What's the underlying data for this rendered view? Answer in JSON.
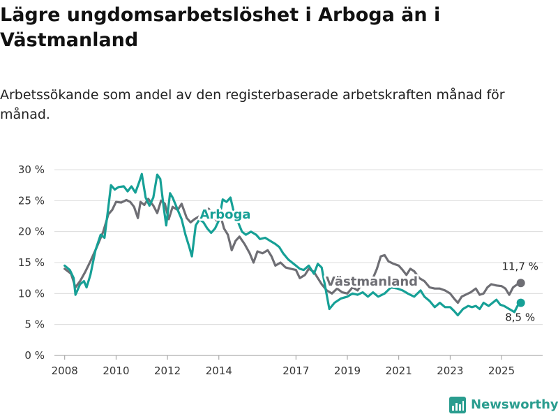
{
  "title": "Lägre ungdomsarbetslöshet i Arboga än i Västmanland",
  "subtitle": "Arbetssökande som andel av den registerbaserade arbetskraften månad för månad.",
  "brand": "Newsworthy",
  "colors": {
    "arboga": "#16a096",
    "vastmanland": "#6e6e74",
    "grid": "#dcdcdc",
    "brand": "#2a9d8f"
  },
  "chart_data": {
    "type": "line",
    "title": "Lägre ungdomsarbetslöshet i Arboga än i Västmanland",
    "xlabel": "",
    "ylabel": "",
    "ylim": [
      0,
      30
    ],
    "xlim": [
      2007.6,
      2026.6
    ],
    "y_ticks": [
      0,
      5,
      10,
      15,
      20,
      25,
      30
    ],
    "y_tick_labels": [
      "0 %",
      "5 %",
      "10 %",
      "15 %",
      "20 %",
      "25 %",
      "30 %"
    ],
    "x_ticks": [
      2008,
      2010,
      2012,
      2014,
      2017,
      2019,
      2021,
      2023,
      2025
    ],
    "x_tick_labels": [
      "2008",
      "2010",
      "2012",
      "2014",
      "2017",
      "2019",
      "2021",
      "2023",
      "2025"
    ],
    "series": [
      {
        "name": "Västmanland",
        "end_label": "11,7 %",
        "points": [
          [
            2008.0,
            14.0
          ],
          [
            2008.25,
            13.2
          ],
          [
            2008.42,
            11.0
          ],
          [
            2008.6,
            12.0
          ],
          [
            2008.8,
            13.5
          ],
          [
            2009.0,
            15.2
          ],
          [
            2009.25,
            17.5
          ],
          [
            2009.5,
            20.0
          ],
          [
            2009.7,
            22.8
          ],
          [
            2009.85,
            23.5
          ],
          [
            2010.0,
            24.8
          ],
          [
            2010.2,
            24.7
          ],
          [
            2010.4,
            25.1
          ],
          [
            2010.55,
            24.8
          ],
          [
            2010.7,
            24.0
          ],
          [
            2010.85,
            22.2
          ],
          [
            2010.95,
            24.8
          ],
          [
            2011.1,
            24.3
          ],
          [
            2011.25,
            25.3
          ],
          [
            2011.45,
            24.2
          ],
          [
            2011.6,
            23.0
          ],
          [
            2011.75,
            25.0
          ],
          [
            2011.9,
            24.5
          ],
          [
            2012.05,
            22.0
          ],
          [
            2012.2,
            24.0
          ],
          [
            2012.4,
            23.5
          ],
          [
            2012.55,
            24.5
          ],
          [
            2012.75,
            22.2
          ],
          [
            2012.9,
            21.5
          ],
          [
            2013.05,
            22.0
          ],
          [
            2013.25,
            22.5
          ],
          [
            2013.45,
            23.3
          ],
          [
            2013.6,
            23.7
          ],
          [
            2013.75,
            23.0
          ],
          [
            2013.9,
            21.8
          ],
          [
            2014.05,
            22.8
          ],
          [
            2014.2,
            20.5
          ],
          [
            2014.35,
            19.5
          ],
          [
            2014.5,
            17.0
          ],
          [
            2014.65,
            18.5
          ],
          [
            2014.8,
            19.2
          ],
          [
            2015.0,
            18.0
          ],
          [
            2015.2,
            16.5
          ],
          [
            2015.35,
            15.0
          ],
          [
            2015.5,
            16.8
          ],
          [
            2015.7,
            16.5
          ],
          [
            2015.9,
            17.0
          ],
          [
            2016.05,
            16.0
          ],
          [
            2016.2,
            14.5
          ],
          [
            2016.4,
            15.0
          ],
          [
            2016.6,
            14.2
          ],
          [
            2016.8,
            14.0
          ],
          [
            2017.0,
            13.8
          ],
          [
            2017.15,
            12.5
          ],
          [
            2017.35,
            13.0
          ],
          [
            2017.5,
            14.0
          ],
          [
            2017.7,
            13.5
          ],
          [
            2017.85,
            12.5
          ],
          [
            2018.0,
            11.5
          ],
          [
            2018.2,
            10.5
          ],
          [
            2018.4,
            10.0
          ],
          [
            2018.6,
            10.8
          ],
          [
            2018.8,
            10.2
          ],
          [
            2019.0,
            10.0
          ],
          [
            2019.2,
            11.0
          ],
          [
            2019.4,
            10.5
          ],
          [
            2019.6,
            11.8
          ],
          [
            2019.8,
            12.2
          ],
          [
            2020.0,
            12.5
          ],
          [
            2020.15,
            14.0
          ],
          [
            2020.3,
            16.0
          ],
          [
            2020.45,
            16.2
          ],
          [
            2020.6,
            15.2
          ],
          [
            2020.8,
            14.8
          ],
          [
            2021.0,
            14.5
          ],
          [
            2021.15,
            13.8
          ],
          [
            2021.3,
            13.0
          ],
          [
            2021.45,
            14.0
          ],
          [
            2021.6,
            13.6
          ],
          [
            2021.8,
            12.5
          ],
          [
            2022.0,
            12.0
          ],
          [
            2022.2,
            11.0
          ],
          [
            2022.4,
            10.8
          ],
          [
            2022.6,
            10.8
          ],
          [
            2022.8,
            10.5
          ],
          [
            2023.0,
            10.0
          ],
          [
            2023.15,
            9.2
          ],
          [
            2023.3,
            8.5
          ],
          [
            2023.45,
            9.5
          ],
          [
            2023.6,
            9.8
          ],
          [
            2023.8,
            10.2
          ],
          [
            2024.0,
            10.8
          ],
          [
            2024.15,
            9.8
          ],
          [
            2024.3,
            10.0
          ],
          [
            2024.45,
            11.0
          ],
          [
            2024.6,
            11.5
          ],
          [
            2024.8,
            11.3
          ],
          [
            2025.0,
            11.2
          ],
          [
            2025.15,
            10.8
          ],
          [
            2025.3,
            9.8
          ],
          [
            2025.45,
            11.0
          ],
          [
            2025.62,
            11.5
          ],
          [
            2025.75,
            11.7
          ]
        ]
      },
      {
        "name": "Arboga",
        "end_label": "8,5 %",
        "points": [
          [
            2008.0,
            14.5
          ],
          [
            2008.2,
            13.8
          ],
          [
            2008.35,
            12.5
          ],
          [
            2008.42,
            9.8
          ],
          [
            2008.6,
            11.5
          ],
          [
            2008.75,
            12.0
          ],
          [
            2008.85,
            11.0
          ],
          [
            2009.0,
            13.0
          ],
          [
            2009.2,
            17.0
          ],
          [
            2009.4,
            19.5
          ],
          [
            2009.55,
            19.0
          ],
          [
            2009.7,
            24.0
          ],
          [
            2009.8,
            27.5
          ],
          [
            2009.95,
            26.8
          ],
          [
            2010.1,
            27.2
          ],
          [
            2010.3,
            27.3
          ],
          [
            2010.45,
            26.5
          ],
          [
            2010.6,
            27.3
          ],
          [
            2010.75,
            26.3
          ],
          [
            2010.9,
            28.0
          ],
          [
            2011.0,
            29.3
          ],
          [
            2011.15,
            25.5
          ],
          [
            2011.3,
            24.2
          ],
          [
            2011.45,
            25.5
          ],
          [
            2011.6,
            29.2
          ],
          [
            2011.72,
            28.5
          ],
          [
            2011.85,
            24.0
          ],
          [
            2011.95,
            21.0
          ],
          [
            2012.1,
            26.2
          ],
          [
            2012.2,
            25.5
          ],
          [
            2012.4,
            23.5
          ],
          [
            2012.55,
            22.0
          ],
          [
            2012.7,
            19.5
          ],
          [
            2012.85,
            17.5
          ],
          [
            2012.95,
            16.0
          ],
          [
            2013.1,
            21.0
          ],
          [
            2013.25,
            22.0
          ],
          [
            2013.4,
            21.5
          ],
          [
            2013.55,
            20.5
          ],
          [
            2013.7,
            19.8
          ],
          [
            2013.85,
            20.5
          ],
          [
            2014.0,
            21.8
          ],
          [
            2014.15,
            25.2
          ],
          [
            2014.3,
            24.8
          ],
          [
            2014.45,
            25.5
          ],
          [
            2014.6,
            22.8
          ],
          [
            2014.75,
            21.5
          ],
          [
            2014.9,
            20.0
          ],
          [
            2015.05,
            19.5
          ],
          [
            2015.25,
            20.0
          ],
          [
            2015.45,
            19.5
          ],
          [
            2015.6,
            18.8
          ],
          [
            2015.8,
            19.0
          ],
          [
            2016.0,
            18.5
          ],
          [
            2016.2,
            18.0
          ],
          [
            2016.35,
            17.5
          ],
          [
            2016.5,
            16.5
          ],
          [
            2016.7,
            15.5
          ],
          [
            2016.85,
            15.0
          ],
          [
            2017.0,
            14.5
          ],
          [
            2017.15,
            14.0
          ],
          [
            2017.3,
            13.8
          ],
          [
            2017.5,
            14.5
          ],
          [
            2017.7,
            13.2
          ],
          [
            2017.85,
            14.8
          ],
          [
            2018.0,
            14.2
          ],
          [
            2018.15,
            10.8
          ],
          [
            2018.3,
            7.5
          ],
          [
            2018.5,
            8.5
          ],
          [
            2018.75,
            9.2
          ],
          [
            2019.0,
            9.5
          ],
          [
            2019.2,
            10.0
          ],
          [
            2019.4,
            9.8
          ],
          [
            2019.6,
            10.2
          ],
          [
            2019.8,
            9.5
          ],
          [
            2020.0,
            10.2
          ],
          [
            2020.2,
            9.5
          ],
          [
            2020.45,
            10.0
          ],
          [
            2020.7,
            11.0
          ],
          [
            2020.95,
            10.8
          ],
          [
            2021.15,
            10.5
          ],
          [
            2021.35,
            10.0
          ],
          [
            2021.6,
            9.5
          ],
          [
            2021.85,
            10.5
          ],
          [
            2022.0,
            9.5
          ],
          [
            2022.2,
            8.8
          ],
          [
            2022.4,
            7.8
          ],
          [
            2022.6,
            8.5
          ],
          [
            2022.8,
            7.8
          ],
          [
            2023.0,
            7.8
          ],
          [
            2023.15,
            7.2
          ],
          [
            2023.3,
            6.5
          ],
          [
            2023.5,
            7.5
          ],
          [
            2023.7,
            8.0
          ],
          [
            2023.85,
            7.8
          ],
          [
            2024.0,
            8.0
          ],
          [
            2024.15,
            7.5
          ],
          [
            2024.3,
            8.5
          ],
          [
            2024.5,
            8.0
          ],
          [
            2024.65,
            8.5
          ],
          [
            2024.8,
            9.0
          ],
          [
            2024.95,
            8.2
          ],
          [
            2025.1,
            8.0
          ],
          [
            2025.3,
            7.5
          ],
          [
            2025.5,
            7.0
          ],
          [
            2025.62,
            8.0
          ],
          [
            2025.75,
            8.5
          ]
        ]
      }
    ],
    "annotations": [
      {
        "text": "Arboga",
        "series": "Arboga"
      },
      {
        "text": "Västmanland",
        "series": "Västmanland"
      }
    ]
  }
}
